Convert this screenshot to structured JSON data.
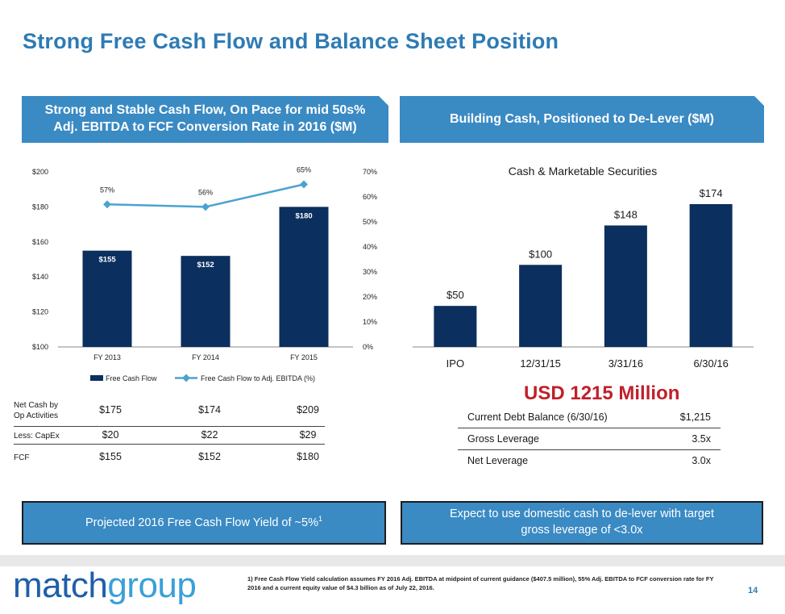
{
  "title": "Strong Free Cash Flow and Balance Sheet Position",
  "left_banner": {
    "line1": "Strong and Stable Cash Flow, On Pace for mid 50s%",
    "line2": "Adj. EBITDA to FCF Conversion Rate in 2016 ($M)"
  },
  "right_banner": "Building Cash, Positioned to De-Lever ($M)",
  "colors": {
    "accent": "#2e7bb4",
    "banner": "#3a8ac4",
    "bar": "#0b2f5e",
    "line": "#4ba3cf",
    "highlight": "#c0202a"
  },
  "chart_data": [
    {
      "type": "bar",
      "categories": [
        "FY 2013",
        "FY 2014",
        "FY 2015"
      ],
      "series": [
        {
          "name": "Free Cash Flow",
          "values": [
            155,
            152,
            180
          ],
          "labels": [
            "$155",
            "$152",
            "$180"
          ],
          "axis": "left"
        },
        {
          "name": "Free Cash Flow to Adj. EBITDA (%)",
          "values": [
            57,
            56,
            65
          ],
          "labels": [
            "57%",
            "56%",
            "65%"
          ],
          "axis": "right",
          "kind": "line"
        }
      ],
      "ylim": [
        100,
        200
      ],
      "y_ticks": [
        "$100",
        "$120",
        "$140",
        "$160",
        "$180",
        "$200"
      ],
      "y2lim": [
        0,
        70
      ],
      "y2_ticks": [
        "0%",
        "10%",
        "20%",
        "30%",
        "40%",
        "50%",
        "60%",
        "70%"
      ],
      "legend": "bottom",
      "grid": false
    },
    {
      "type": "bar",
      "title": "Cash & Marketable Securities",
      "categories": [
        "IPO",
        "12/31/15",
        "3/31/16",
        "6/30/16"
      ],
      "values": [
        50,
        100,
        148,
        174
      ],
      "labels": [
        "$50",
        "$100",
        "$148",
        "$174"
      ],
      "grid": false
    }
  ],
  "left_table": {
    "headers": [
      "Net Cash by",
      "Op Activities"
    ],
    "rows": [
      {
        "label_1": "Net Cash by",
        "label_2": "Op Activities",
        "values": [
          "$175",
          "$174",
          "$209"
        ]
      },
      {
        "label": "Less: CapEx",
        "values": [
          "$20",
          "$22",
          "$29"
        ]
      },
      {
        "label": "FCF",
        "values": [
          "$155",
          "$152",
          "$180"
        ]
      }
    ]
  },
  "usd_note": "USD 1215 Million",
  "right_table": [
    {
      "label": "Current Debt Balance (6/30/16)",
      "value": "$1,215"
    },
    {
      "label": "Gross Leverage",
      "value": "3.5x"
    },
    {
      "label": "Net Leverage",
      "value": "3.0x"
    }
  ],
  "bottom_left": {
    "text": "Projected 2016 Free Cash Flow Yield of ~5%",
    "sup": "1"
  },
  "bottom_right": {
    "line1": "Expect to use domestic cash to de-lever with target",
    "line2": "gross leverage of <3.0x"
  },
  "logo": {
    "part1": "match",
    "part2": "group"
  },
  "footnote": "1)  Free Cash Flow Yield calculation assumes FY 2016 Adj. EBITDA at midpoint of current guidance ($407.5 million), 55% Adj. EBITDA to FCF conversion rate for FY 2016 and a current equity value of $4.3 billion as of July 22, 2016.",
  "page_number": "14"
}
